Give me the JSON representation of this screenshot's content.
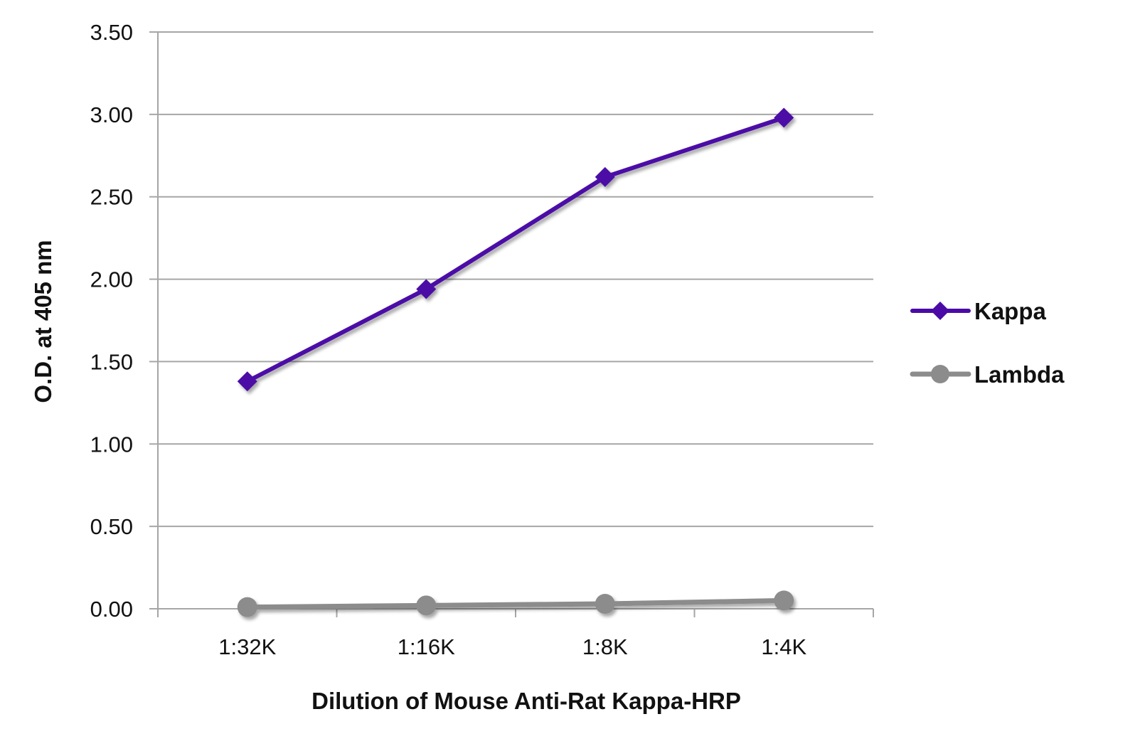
{
  "chart_data": {
    "type": "line",
    "title": "",
    "xlabel": "Dilution of Mouse Anti-Rat Kappa-HRP",
    "ylabel": "O.D. at 405 nm",
    "categories": [
      "1:32K",
      "1:16K",
      "1:8K",
      "1:4K"
    ],
    "ylim": [
      0,
      3.5
    ],
    "yticks": [
      "0.00",
      "0.50",
      "1.00",
      "1.50",
      "2.00",
      "2.50",
      "3.00",
      "3.50"
    ],
    "grid": true,
    "legend_position": "right",
    "series": [
      {
        "name": "Kappa",
        "values": [
          1.38,
          1.94,
          2.62,
          2.98
        ],
        "color": "#4b0aa6",
        "marker": "diamond"
      },
      {
        "name": "Lambda",
        "values": [
          0.01,
          0.02,
          0.03,
          0.05
        ],
        "color": "#8c8c8c",
        "marker": "circle"
      }
    ]
  }
}
